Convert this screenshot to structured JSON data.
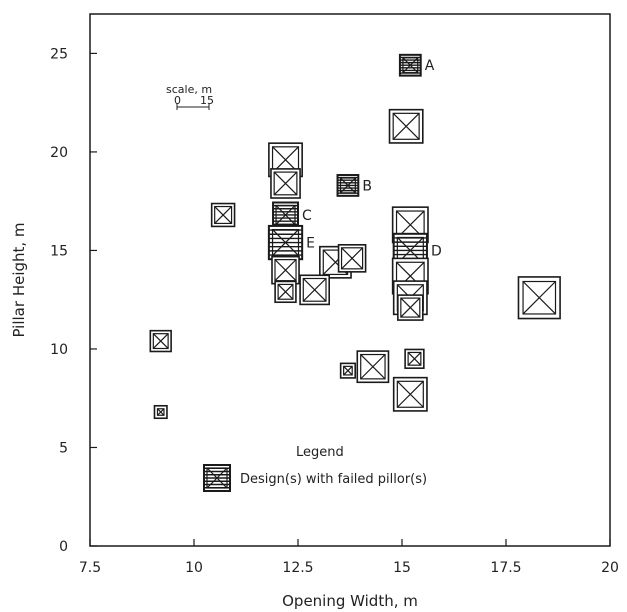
{
  "chart_data": {
    "type": "scatter",
    "title": "",
    "xlabel": "Opening Width, m",
    "ylabel": "Pillar Height, m",
    "xlim": [
      7.5,
      20
    ],
    "ylim": [
      0,
      27
    ],
    "x_ticks": [
      "7.5",
      "10",
      "12.5",
      "15",
      "17.5",
      "20"
    ],
    "y_ticks": [
      "0",
      "5",
      "10",
      "15",
      "20",
      "25"
    ],
    "grid": false,
    "marker_size_note": "marker size is drawn to the plot scale (pillar width)",
    "scale_bar": {
      "label": "scale, m",
      "ticks": [
        "0",
        "15"
      ]
    },
    "legend": {
      "title": "Legend",
      "entries": [
        {
          "label": "Design(s) with failed pillor(s)",
          "style": "hatched-square"
        }
      ]
    },
    "points": [
      {
        "x": 15.2,
        "y": 24.4,
        "size": 0.5,
        "failed": true,
        "tag": "A"
      },
      {
        "x": 15.1,
        "y": 21.3,
        "size": 0.8,
        "failed": false,
        "tag": ""
      },
      {
        "x": 12.2,
        "y": 19.6,
        "size": 0.8,
        "failed": false,
        "tag": ""
      },
      {
        "x": 12.2,
        "y": 18.4,
        "size": 0.7,
        "failed": false,
        "tag": ""
      },
      {
        "x": 13.7,
        "y": 18.3,
        "size": 0.5,
        "failed": true,
        "tag": "B"
      },
      {
        "x": 10.7,
        "y": 16.8,
        "size": 0.55,
        "failed": false,
        "tag": ""
      },
      {
        "x": 12.2,
        "y": 16.8,
        "size": 0.6,
        "failed": true,
        "tag": "C"
      },
      {
        "x": 15.2,
        "y": 16.3,
        "size": 0.85,
        "failed": false,
        "tag": ""
      },
      {
        "x": 12.2,
        "y": 15.4,
        "size": 0.8,
        "failed": true,
        "tag": "E"
      },
      {
        "x": 15.2,
        "y": 15.0,
        "size": 0.8,
        "failed": true,
        "tag": "D"
      },
      {
        "x": 13.4,
        "y": 14.4,
        "size": 0.75,
        "failed": false,
        "tag": ""
      },
      {
        "x": 13.8,
        "y": 14.6,
        "size": 0.65,
        "failed": false,
        "tag": ""
      },
      {
        "x": 12.2,
        "y": 14.0,
        "size": 0.65,
        "failed": false,
        "tag": ""
      },
      {
        "x": 15.2,
        "y": 13.7,
        "size": 0.85,
        "failed": false,
        "tag": ""
      },
      {
        "x": 12.9,
        "y": 13.0,
        "size": 0.7,
        "failed": false,
        "tag": ""
      },
      {
        "x": 12.2,
        "y": 12.9,
        "size": 0.5,
        "failed": false,
        "tag": ""
      },
      {
        "x": 15.2,
        "y": 12.6,
        "size": 0.8,
        "failed": false,
        "tag": ""
      },
      {
        "x": 15.2,
        "y": 12.1,
        "size": 0.6,
        "failed": false,
        "tag": ""
      },
      {
        "x": 18.3,
        "y": 12.6,
        "size": 1.0,
        "failed": false,
        "tag": ""
      },
      {
        "x": 9.2,
        "y": 10.4,
        "size": 0.5,
        "failed": false,
        "tag": ""
      },
      {
        "x": 15.3,
        "y": 9.5,
        "size": 0.45,
        "failed": false,
        "tag": ""
      },
      {
        "x": 14.3,
        "y": 9.1,
        "size": 0.75,
        "failed": false,
        "tag": ""
      },
      {
        "x": 13.7,
        "y": 8.9,
        "size": 0.35,
        "failed": false,
        "tag": ""
      },
      {
        "x": 15.2,
        "y": 7.7,
        "size": 0.8,
        "failed": false,
        "tag": ""
      },
      {
        "x": 9.2,
        "y": 6.8,
        "size": 0.3,
        "failed": false,
        "tag": ""
      }
    ]
  }
}
